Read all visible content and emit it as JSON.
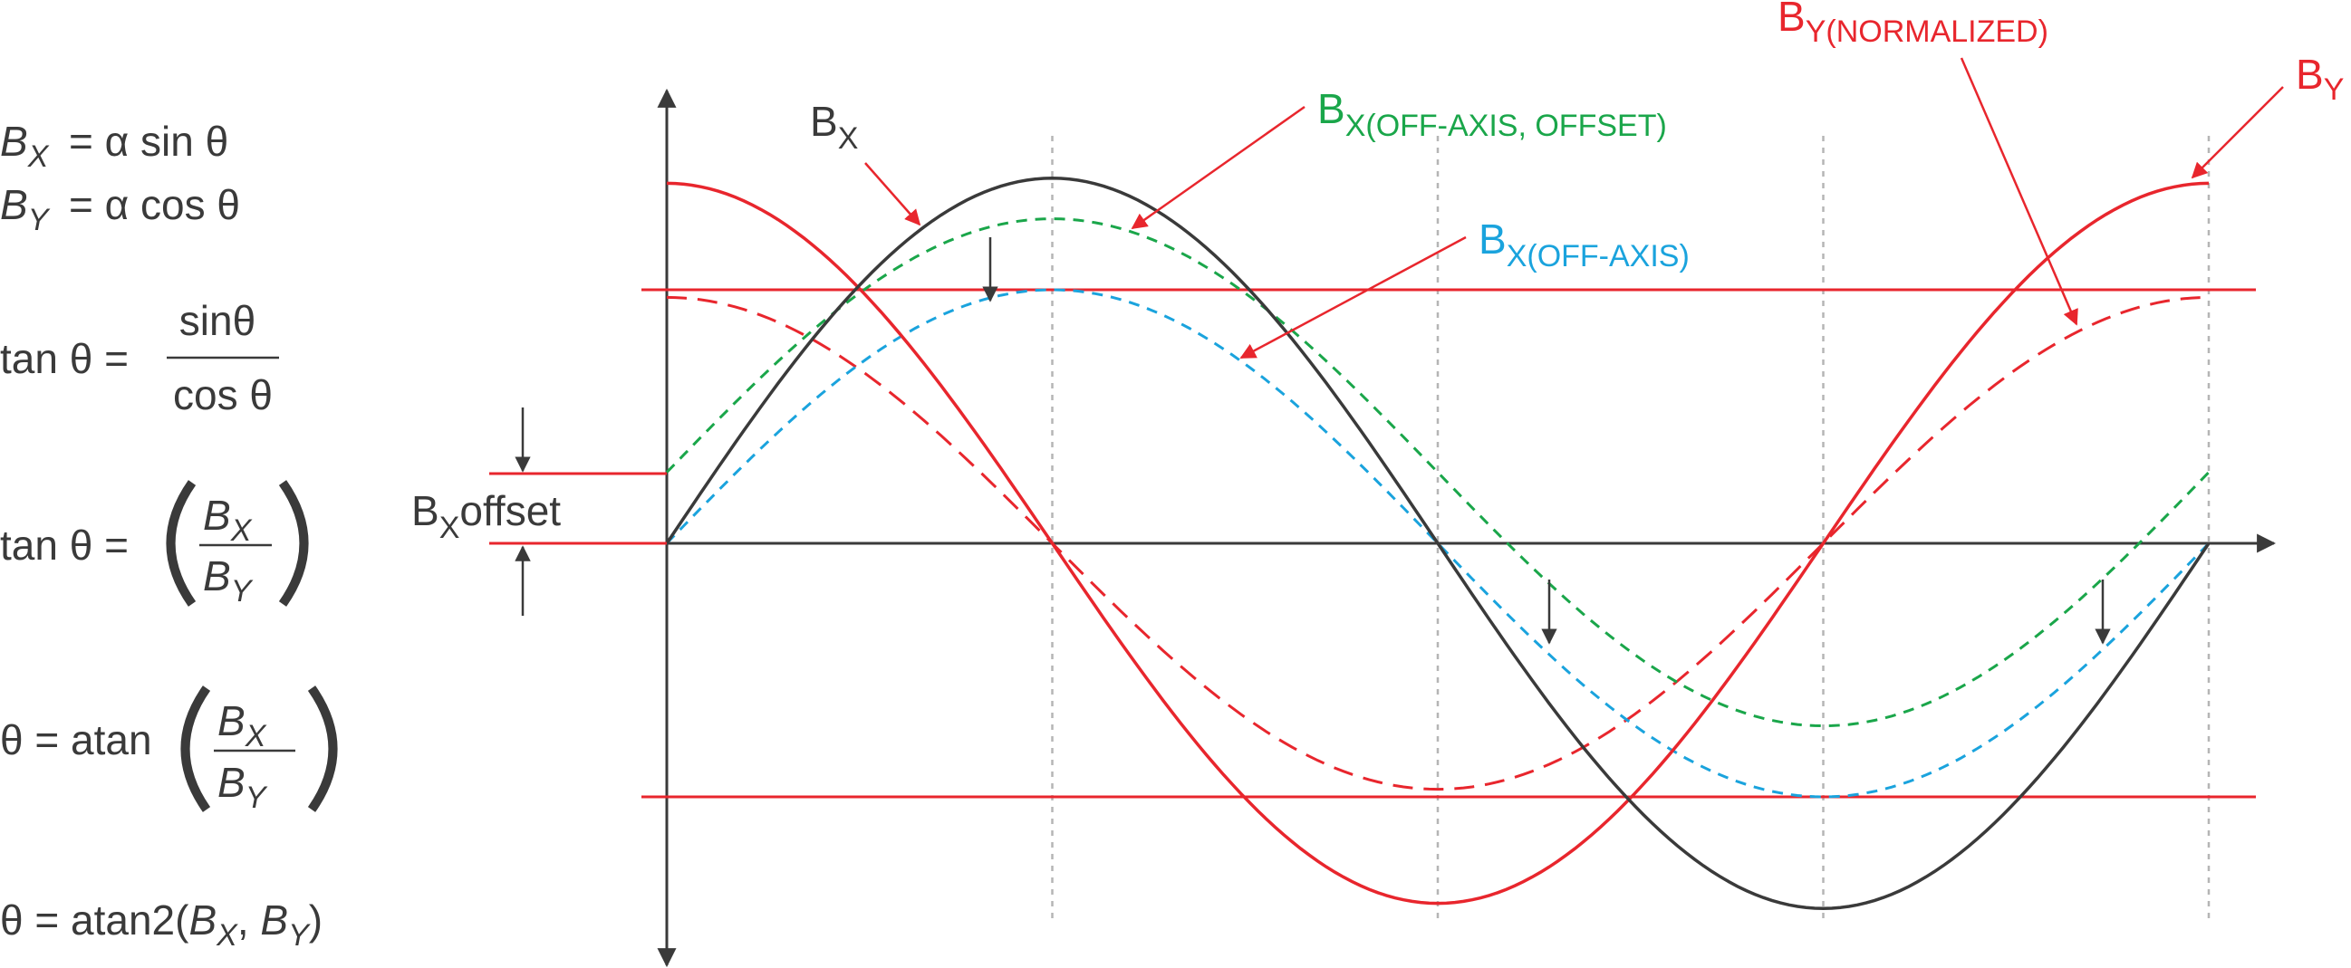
{
  "colors": {
    "black": "#3a3a3a",
    "red": "#e8262d",
    "green": "#1aa64a",
    "cyan": "#1aa3dd",
    "grid": "#b5b5b5"
  },
  "equations": {
    "eq1": {
      "lhs_main": "B",
      "lhs_sub": "X",
      "rhs": "=  α sin θ"
    },
    "eq2": {
      "lhs_main": "B",
      "lhs_sub": "Y",
      "rhs": "=  α cos θ"
    },
    "eq3": {
      "lhs": "tan θ  =",
      "num": "sinθ",
      "den": "cos θ"
    },
    "eq4": {
      "lhs": "tan θ  =",
      "num_main": "B",
      "num_sub": "X",
      "den_main": "B",
      "den_sub": "Y"
    },
    "eq5": {
      "lhs": "θ  =  atan",
      "num_main": "B",
      "num_sub": "X",
      "den_main": "B",
      "den_sub": "Y"
    },
    "eq6": {
      "prefix": "θ  =  atan2(",
      "a_main": "B",
      "a_sub": "X",
      "sep": ", ",
      "b_main": "B",
      "b_sub": "Y",
      "suffix": ")"
    }
  },
  "labels": {
    "bx": {
      "main": "B",
      "sub": "X"
    },
    "bx_offaxis_offset": {
      "main": "B",
      "sub": "X(OFF-AXIS, OFFSET)"
    },
    "bx_offaxis": {
      "main": "B",
      "sub": "X(OFF-AXIS)"
    },
    "by_normalized": {
      "main": "B",
      "sub": "Y(NORMALIZED)"
    },
    "by": {
      "main": "B",
      "sub": "Y"
    },
    "bx_offset": {
      "main": "B",
      "sub": "X",
      "suffix": "offset"
    }
  },
  "chart_data": {
    "type": "line",
    "x_unit": "degrees",
    "x_range": [
      0,
      360
    ],
    "gridlines_x": [
      90,
      180,
      270,
      360
    ],
    "reference_levels": [
      1,
      -1
    ],
    "offset_value": 0.28,
    "series": [
      {
        "name": "B_X",
        "func": "sin",
        "amplitude": 1.44,
        "offset": 0,
        "style": "solid",
        "color": "black"
      },
      {
        "name": "B_Y",
        "func": "cos",
        "amplitude": 1.42,
        "offset": 0,
        "style": "solid",
        "color": "red"
      },
      {
        "name": "B_Y(NORMALIZED)",
        "func": "cos",
        "amplitude": 0.97,
        "offset": 0,
        "style": "dashed",
        "color": "red"
      },
      {
        "name": "B_X(OFF-AXIS)",
        "func": "sin",
        "amplitude": 1.0,
        "offset": 0,
        "style": "dashed",
        "color": "cyan"
      },
      {
        "name": "B_X(OFF-AXIS, OFFSET)",
        "func": "sin",
        "amplitude": 1.0,
        "offset": 0.28,
        "style": "dashed",
        "color": "green"
      }
    ]
  }
}
